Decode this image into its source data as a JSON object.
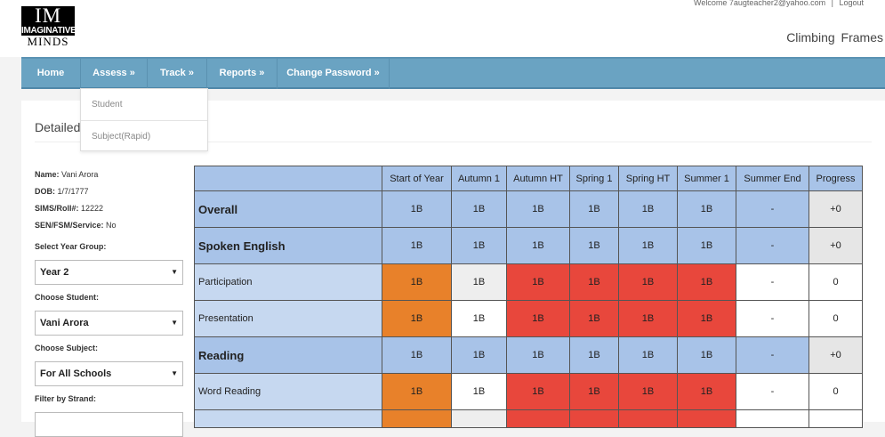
{
  "logo": {
    "line1": "IM",
    "line2": "IMAGINATIVE",
    "line3": "MINDS"
  },
  "header": {
    "welcome": "Welcome 7augteacher2@yahoo.com",
    "separator": "|",
    "logout": "Logout",
    "school": "Climbing Frames"
  },
  "nav": [
    {
      "label": "Home"
    },
    {
      "label": "Assess »"
    },
    {
      "label": "Track »"
    },
    {
      "label": "Reports »"
    },
    {
      "label": "Change Password »"
    }
  ],
  "assess_menu": [
    {
      "label": "Student"
    },
    {
      "label": "Subject(Rapid)"
    }
  ],
  "page": {
    "title": "Detailed"
  },
  "student": {
    "name_label": "Name:",
    "name": "Vani Arora",
    "dob_label": "DOB:",
    "dob": "1/7/1777",
    "sims_label": "SIMS/Roll#:",
    "sims": "12222",
    "sen_label": "SEN/FSM/Service:",
    "sen": "No"
  },
  "filters": {
    "year_label": "Select Year Group:",
    "year": "Year 2",
    "student_label": "Choose Student:",
    "student": "Vani Arora",
    "subject_label": "Choose Subject:",
    "subject": "For All Schools",
    "strand_label": "Filter by Strand:"
  },
  "table": {
    "headers": [
      "",
      "Start of Year",
      "Autumn 1",
      "Autumn HT",
      "Spring 1",
      "Spring HT",
      "Summer 1",
      "Summer End",
      "Progress"
    ],
    "rows": [
      {
        "label": "Overall",
        "cells": [
          "1B",
          "1B",
          "1B",
          "1B",
          "1B",
          "1B",
          "-"
        ],
        "progress": "+0"
      },
      {
        "label": "Spoken English",
        "cells": [
          "1B",
          "1B",
          "1B",
          "1B",
          "1B",
          "1B",
          "-"
        ],
        "progress": "+0"
      },
      {
        "label": "Participation",
        "cells": [
          "1B",
          "1B",
          "1B",
          "1B",
          "1B",
          "1B",
          "-"
        ],
        "progress": "0"
      },
      {
        "label": "Presentation",
        "cells": [
          "1B",
          "1B",
          "1B",
          "1B",
          "1B",
          "1B",
          "-"
        ],
        "progress": "0"
      },
      {
        "label": "Reading",
        "cells": [
          "1B",
          "1B",
          "1B",
          "1B",
          "1B",
          "1B",
          "-"
        ],
        "progress": "+0"
      },
      {
        "label": "Word Reading",
        "cells": [
          "1B",
          "1B",
          "1B",
          "1B",
          "1B",
          "1B",
          "-"
        ],
        "progress": "0"
      }
    ]
  },
  "colors": {
    "nav": "#6aa3c2",
    "header_cell": "#a8c3e8",
    "orange": "#e8812a",
    "red": "#e8473c"
  }
}
